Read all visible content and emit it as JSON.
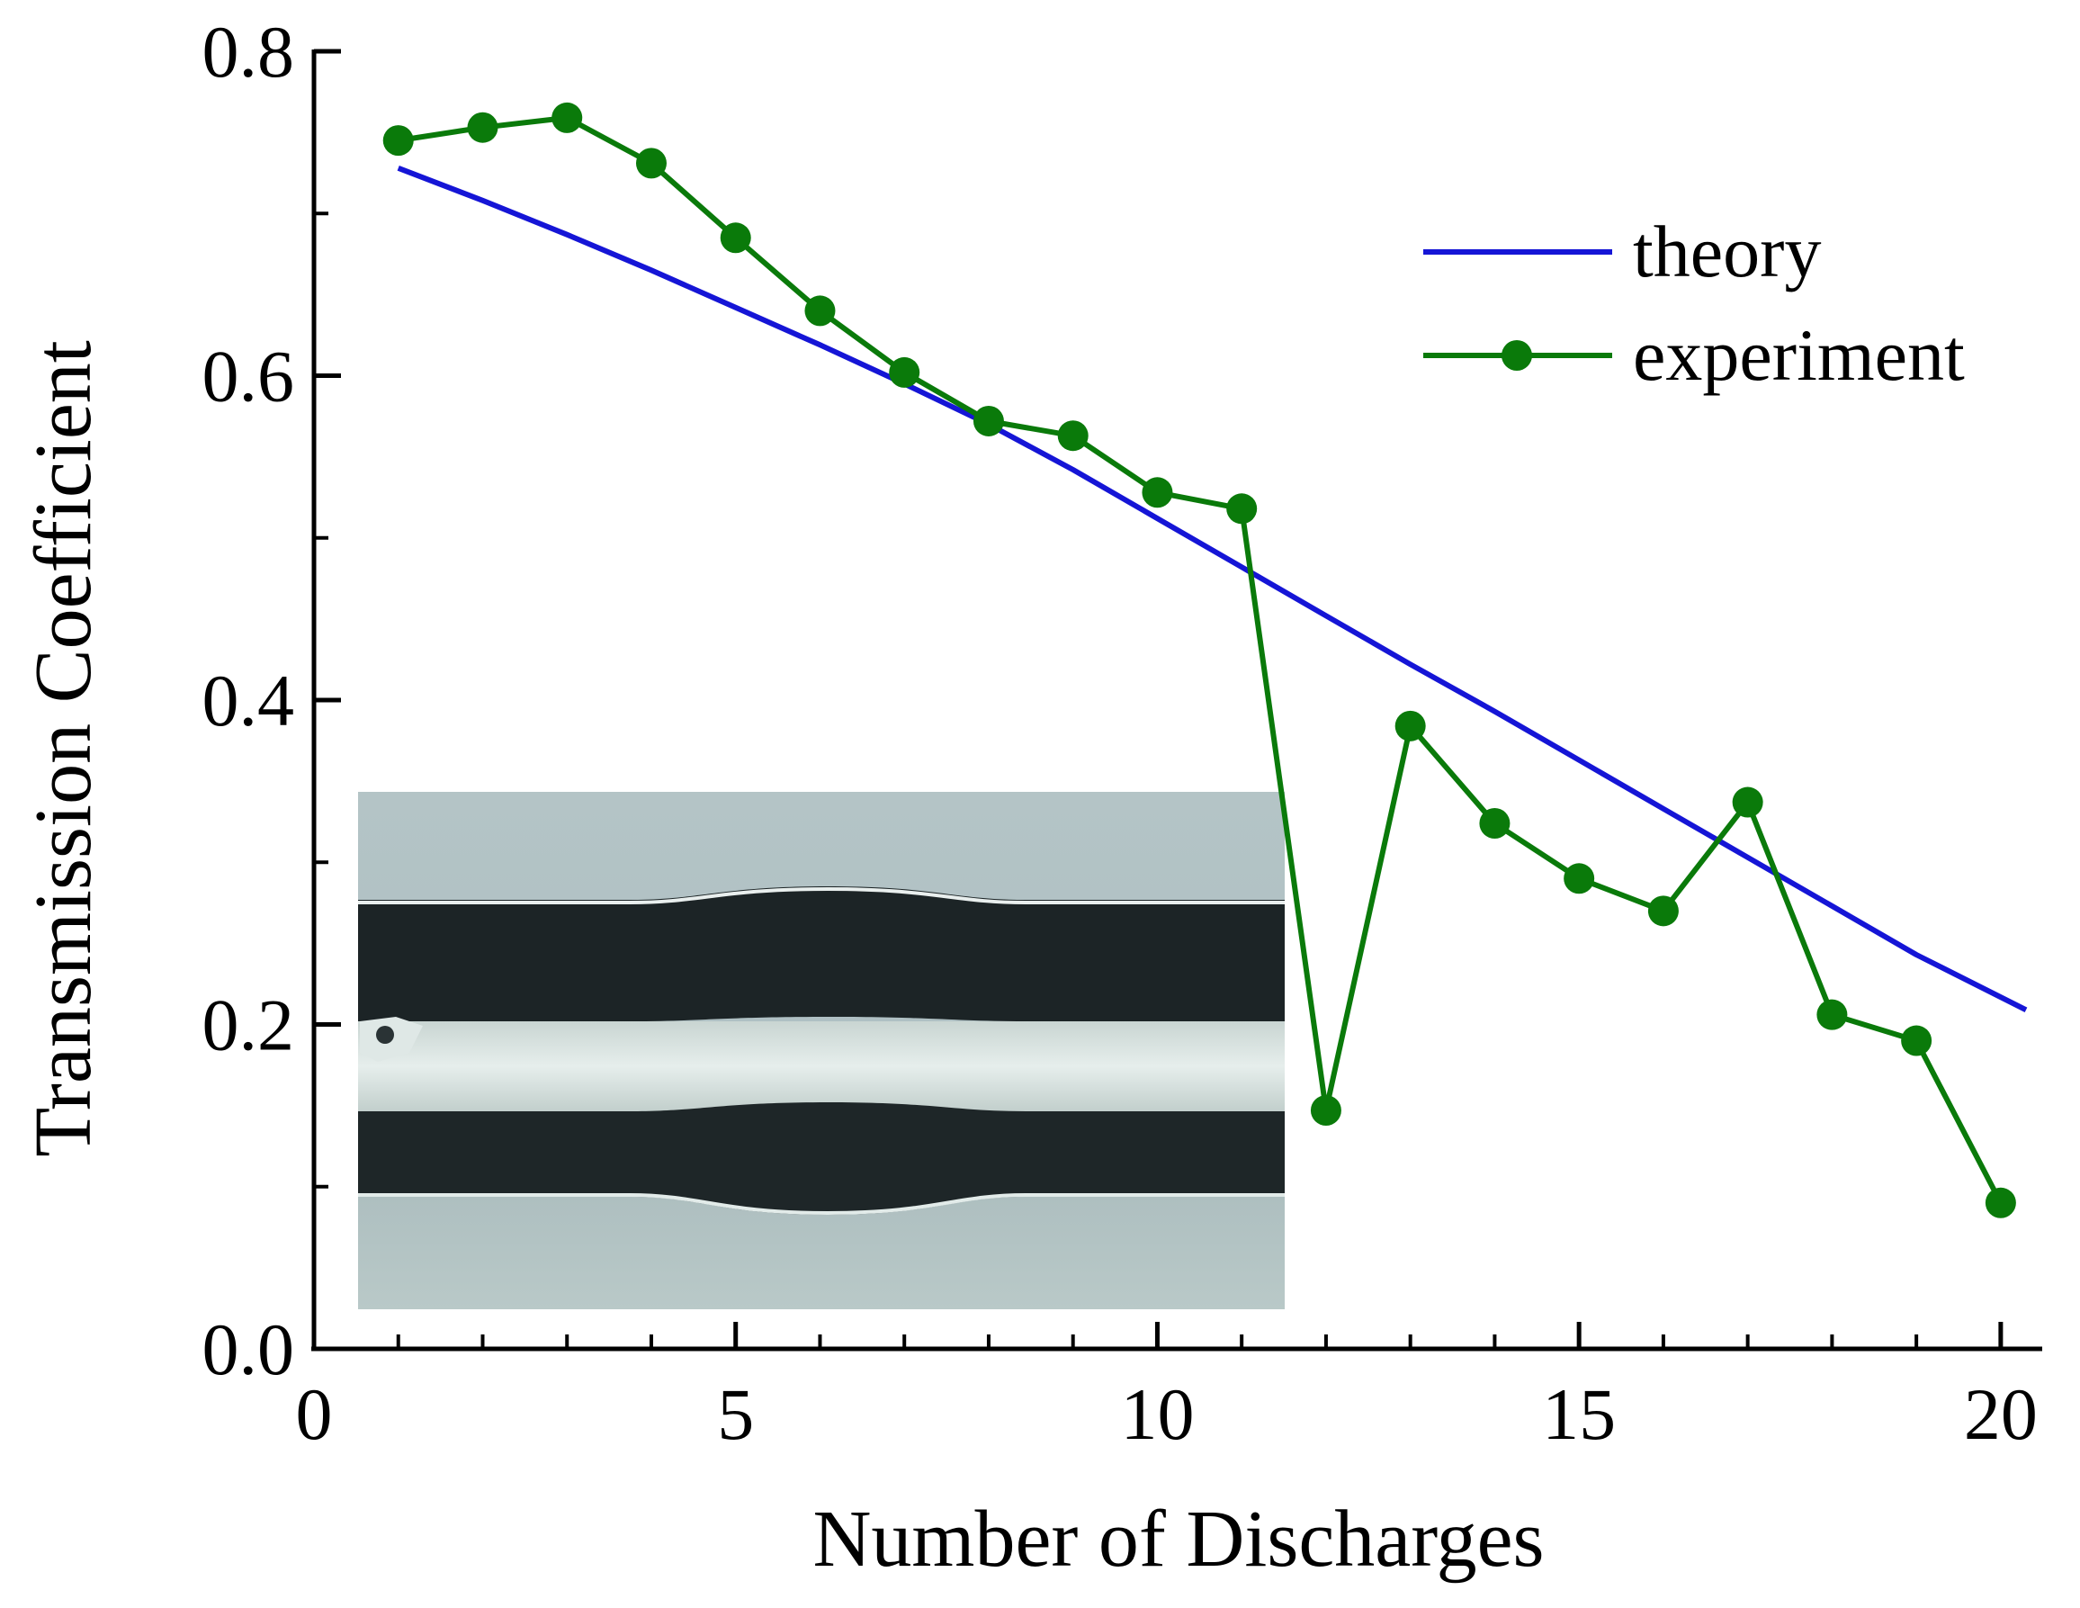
{
  "chart_data": {
    "type": "line",
    "xlabel": "Number of Discharges",
    "ylabel": "Transmission Coefficient",
    "xlim": [
      0,
      20.3
    ],
    "ylim": [
      0,
      0.8
    ],
    "xticks": [
      0,
      5,
      10,
      15,
      20
    ],
    "xtick_labels": [
      "0",
      "5",
      "10",
      "15",
      "20"
    ],
    "yticks": [
      0.0,
      0.2,
      0.4,
      0.6,
      0.8
    ],
    "ytick_labels": [
      "0.0",
      "0.2",
      "0.4",
      "0.6",
      "0.8"
    ],
    "grid": false,
    "legend_position": "top-right",
    "series": [
      {
        "name": "theory",
        "style": "line",
        "color": "#1515d6",
        "x": [
          1,
          2,
          3,
          4,
          5,
          6,
          7,
          8,
          9,
          10,
          11,
          12,
          13,
          14,
          15,
          16,
          17,
          18,
          19,
          20.3
        ],
        "y": [
          0.728,
          0.708,
          0.687,
          0.665,
          0.642,
          0.619,
          0.595,
          0.57,
          0.542,
          0.512,
          0.482,
          0.452,
          0.422,
          0.393,
          0.363,
          0.333,
          0.303,
          0.273,
          0.243,
          0.209
        ]
      },
      {
        "name": "experiment",
        "style": "line-markers",
        "color": "#0a7a0a",
        "x": [
          1,
          2,
          3,
          4,
          5,
          6,
          7,
          8,
          9,
          10,
          11,
          12,
          13,
          14,
          15,
          16,
          17,
          18,
          19,
          20
        ],
        "y": [
          0.745,
          0.753,
          0.759,
          0.731,
          0.685,
          0.64,
          0.602,
          0.572,
          0.563,
          0.528,
          0.518,
          0.147,
          0.384,
          0.324,
          0.29,
          0.27,
          0.337,
          0.206,
          0.19,
          0.09
        ]
      }
    ],
    "inset_image": {
      "description_free": true
    }
  }
}
